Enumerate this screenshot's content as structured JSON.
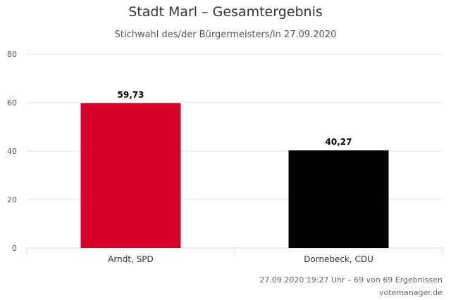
{
  "chart_data": {
    "type": "bar",
    "title": "Stadt Marl – Gesamtergebnis",
    "subtitle": "Stichwahl des/der Bürgermeisters/in 27.09.2020",
    "categories": [
      "Arndt, SPD",
      "Dornebeck, CDU"
    ],
    "values": [
      59.73,
      40.27
    ],
    "data_labels": [
      "59,73",
      "40,27"
    ],
    "colors": [
      "#d50029",
      "#000000"
    ],
    "ylim": [
      0,
      80
    ],
    "yticks": [
      0,
      20,
      40,
      60,
      80
    ],
    "grid": true,
    "legend": "none"
  },
  "footer": {
    "timestamp": "27.09.2020 19:27 Uhr – 69 von 69 Ergebnissen",
    "source": "votemanager.de"
  }
}
